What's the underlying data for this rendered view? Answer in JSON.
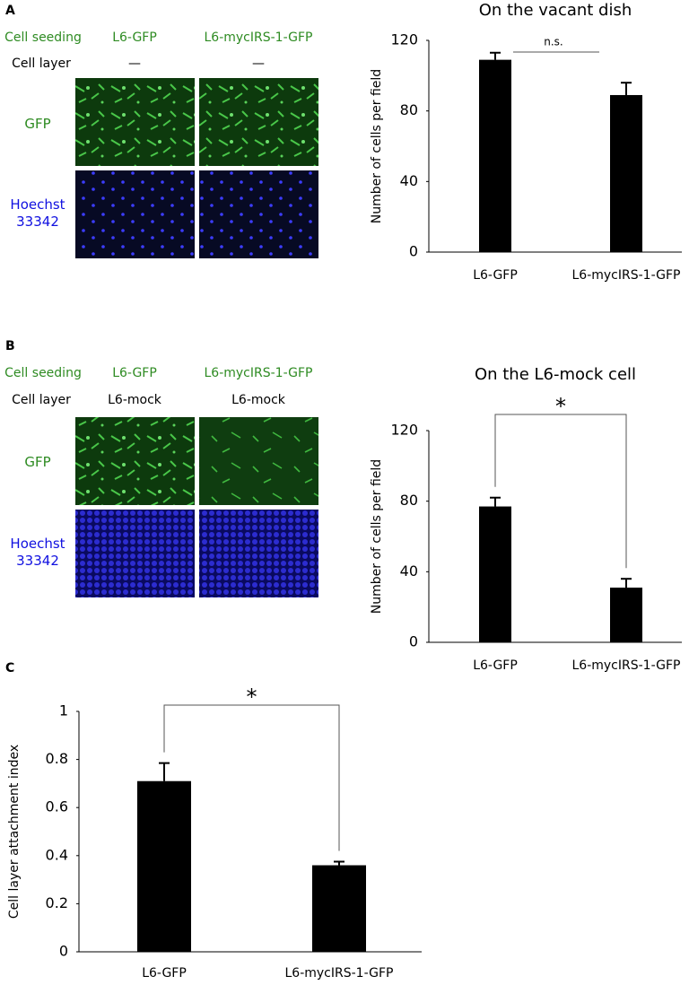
{
  "panels": [
    {
      "label": "A",
      "seeding_label": "Cell seeding",
      "layer_label": "Cell layer",
      "columns": [
        {
          "seeding": "L6-GFP",
          "layer": "—"
        },
        {
          "seeding": "L6-mycIRS-1-GFP",
          "layer": "—"
        }
      ],
      "rows": [
        "GFP",
        "Hoechst 33342"
      ]
    },
    {
      "label": "B",
      "seeding_label": "Cell seeding",
      "layer_label": "Cell layer",
      "columns": [
        {
          "seeding": "L6-GFP",
          "layer": "L6-mock"
        },
        {
          "seeding": "L6-mycIRS-1-GFP",
          "layer": "L6-mock"
        }
      ],
      "rows": [
        "GFP",
        "Hoechst 33342"
      ]
    },
    {
      "label": "C"
    }
  ],
  "chart_data": [
    {
      "type": "bar",
      "title": "On the vacant dish",
      "ylabel": "Number of cells per field",
      "categories": [
        "L6-GFP",
        "L6-mycIRS-1-GFP"
      ],
      "values": [
        109,
        89
      ],
      "errors": [
        4,
        7
      ],
      "color": "#000000",
      "ylim": [
        0,
        120
      ],
      "yticks": [
        0,
        40,
        80,
        120
      ],
      "annotation": "n.s.",
      "bracket": false
    },
    {
      "type": "bar",
      "title": "On the L6-mock cell",
      "ylabel": "Number of cells per field",
      "categories": [
        "L6-GFP",
        "L6-mycIRS-1-GFP"
      ],
      "values": [
        77,
        31
      ],
      "errors": [
        5,
        5
      ],
      "color": "#000000",
      "ylim": [
        0,
        120
      ],
      "yticks": [
        0,
        40,
        80,
        120
      ],
      "annotation": "*",
      "bracket": true
    },
    {
      "type": "bar",
      "ylabel": "Cell layer attachment index",
      "categories": [
        "L6-GFP",
        "L6-mycIRS-1-GFP"
      ],
      "values": [
        0.71,
        0.36
      ],
      "errors": [
        0.075,
        0.015
      ],
      "color": "#000000",
      "ylim": [
        0,
        1
      ],
      "yticks": [
        0,
        0.2,
        0.4,
        0.6,
        0.8,
        1
      ],
      "annotation": "*",
      "bracket": true
    }
  ]
}
